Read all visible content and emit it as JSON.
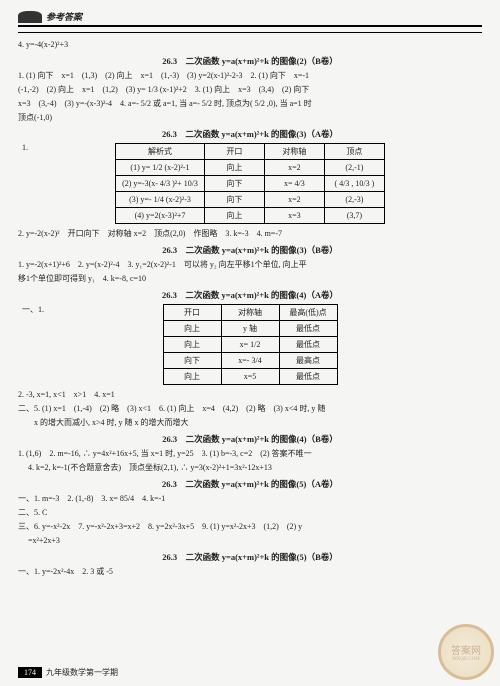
{
  "header": {
    "title": "参考答案"
  },
  "topline": "4. y=-4(x-2)²+3",
  "sections": [
    {
      "title": "26.3　二次函数 y=a(x+m)²+k 的图像(2)（B卷）",
      "body": [
        "1. (1) 向下　x=1　(1,3)　(2) 向上　x=1　(1,-3)　(3) y=2(x-1)²-2-3　2. (1) 向下　x=-1",
        "(-1,-2)　(2) 向上　x=1　(1,2)　(3) y= 1/3 (x-1)²+2　3. (1) 向上　x=3　(3,4)　(2) 向下",
        "x=3　(3,-4)　(3) y=-(x-3)²-4　4. a=- 5/2 或 a=1, 当 a=- 5/2 时, 顶点为( 5/2 ,0), 当 a=1 时",
        "顶点(-1,0)"
      ]
    },
    {
      "title": "26.3　二次函数 y=a(x+m)²+k 的图像(3)（A卷）",
      "table1": {
        "head": [
          "解析式",
          "开口",
          "对称轴",
          "顶点"
        ],
        "rows": [
          [
            "(1) y= 1/2 (x-2)²-1",
            "向上",
            "x=2",
            "(2,-1)"
          ],
          [
            "(2) y=-3(x- 4/3 )²+ 10/3",
            "向下",
            "x= 4/3",
            "( 4/3 , 10/3 )"
          ],
          [
            "(3) y=- 1/4 (x-2)²-3",
            "向下",
            "x=2",
            "(2,-3)"
          ],
          [
            "(4) y=2(x-3)²+7",
            "向上",
            "x=3",
            "(3,7)"
          ]
        ]
      },
      "after": "2. y=-2(x-2)²　开口向下　对称轴 x=2　顶点(2,0)　作图略　3. k=-3　4. m=-7"
    },
    {
      "title": "26.3　二次函数 y=a(x+m)²+k 的图像(3)（B卷）",
      "body": [
        "1. y=-2(x+1)²+6　2. y=(x-2)²-4　3. y₁=2(x-2)²-1　可以将 y₂ 向左平移1个单位, 向上平",
        "移1个单位即可得到 y₁　4. k=-8, c=10"
      ]
    },
    {
      "title": "26.3　二次函数 y=a(x+m)²+k 的图像(4)（A卷）",
      "mark": "一、1.",
      "table2": {
        "head": [
          "开口",
          "对称轴",
          "最高(低)点"
        ],
        "rows": [
          [
            "向上",
            "y 轴",
            "最低点"
          ],
          [
            "向上",
            "x= 1/2",
            "最低点"
          ],
          [
            "向下",
            "x=- 3/4",
            "最高点"
          ],
          [
            "向上",
            "x=5",
            "最低点"
          ]
        ]
      },
      "after": [
        "2. -3, x=1, x<1　x>1　4. x=1",
        "二、5. (1) x=1　(1,-4)　(2) 略　(3) x<1　6. (1) 向上　x=4　(4,2)　(2) 略　(3) x<4 时, y 随",
        "　　x 的增大而减小, x>4 时, y 随 x 的增大而增大"
      ]
    },
    {
      "title": "26.3　二次函数 y=a(x+m)²+k 的图像(4)（B卷）",
      "body": [
        "1. (1,6)　2. m=-16, ∴ y=4x²+16x+5, 当 x=1 时, y=25　3. (1) b=-3, c=2　(2) 答案不唯一",
        "　 4. k=2, k=-1(不合题意舍去)　顶点坐标(2,1), ∴ y=3(x-2)²+1=3x²-12x+13"
      ]
    },
    {
      "title": "26.3　二次函数 y=a(x+m)²+k 的图像(5)（A卷）",
      "body": [
        "一、1. m=-3　2. (1,-8)　3. x= 85/4　4. k=-1",
        "二、5. C",
        "三、6. y=-x²-2x　7. y=-x²-2x+3=x+2　8. y=2x²-3x+5　9. (1) y=x²-2x+3　(1,2)　(2) y",
        "　 =x²+2x+3"
      ]
    },
    {
      "title": "26.3　二次函数 y=a(x+m)²+k 的图像(5)（B卷）",
      "body": [
        "一、1. y=-2x²-4x　2. 3 或 -5"
      ]
    }
  ],
  "footer": {
    "page": "174",
    "label": "九年级数学第一学期"
  },
  "watermark": {
    "top": "答案网",
    "bottom": "MXQE.COM"
  }
}
